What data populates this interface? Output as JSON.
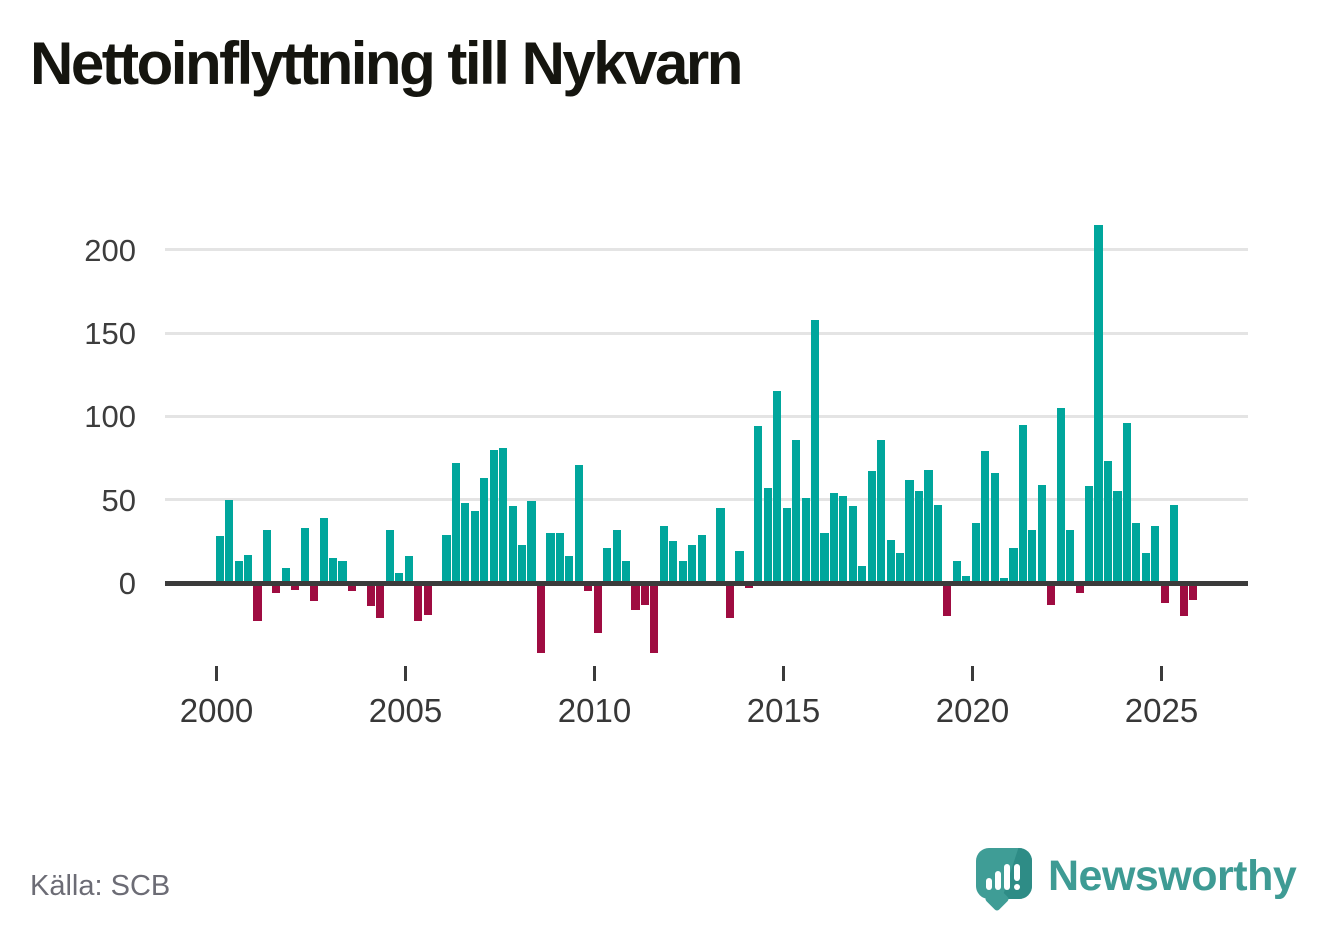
{
  "title": "Nettoinflyttning till Nykvarn",
  "source": "Källa: SCB",
  "logo": {
    "text": "Newsworthy"
  },
  "colors": {
    "positive": "#00a69c",
    "negative": "#9f0c41",
    "grid": "#e4e4e4",
    "axis": "#3b3b3b",
    "title_text": "#15150f",
    "tick_text": "#383838",
    "source_text": "#6c6c75",
    "logo_teal": "#3e9b94"
  },
  "chart_data": {
    "type": "bar",
    "title": "Nettoinflyttning till Nykvarn",
    "frequency": "quarterly",
    "start_year": 2000,
    "end_year": 2025,
    "grid": "horizontal gridlines at 0,50,100,150,200",
    "legend": "none",
    "ylim": [
      -50,
      220
    ],
    "xlabel": "",
    "ylabel": "",
    "x_tick_years": [
      2000,
      2005,
      2010,
      2015,
      2020,
      2025
    ],
    "x_tick_labels": [
      "2000",
      "2005",
      "2010",
      "2015",
      "2020",
      "2025"
    ],
    "y_ticks": [
      0,
      50,
      100,
      150,
      200
    ],
    "y_tick_labels": [
      "0",
      "50",
      "100",
      "150",
      "200"
    ],
    "values": [
      28,
      50,
      13,
      17,
      -23,
      32,
      -6,
      9,
      -4,
      33,
      -11,
      39,
      15,
      13,
      -5,
      0,
      -14,
      -21,
      32,
      6,
      16,
      -23,
      -19,
      -2,
      29,
      72,
      48,
      43,
      63,
      80,
      81,
      46,
      23,
      49,
      -42,
      30,
      30,
      16,
      71,
      -5,
      -30,
      21,
      32,
      13,
      -16,
      -13,
      -42,
      34,
      25,
      13,
      23,
      29,
      0,
      45,
      -21,
      19,
      -3,
      94,
      57,
      115,
      45,
      86,
      51,
      158,
      30,
      54,
      52,
      46,
      10,
      67,
      86,
      26,
      18,
      62,
      55,
      68,
      47,
      -20,
      13,
      4,
      36,
      79,
      66,
      3,
      21,
      95,
      32,
      59,
      -13,
      105,
      32,
      -6,
      58,
      215,
      73,
      55,
      96,
      36,
      18,
      34,
      -12,
      47,
      -20,
      -10
    ]
  }
}
